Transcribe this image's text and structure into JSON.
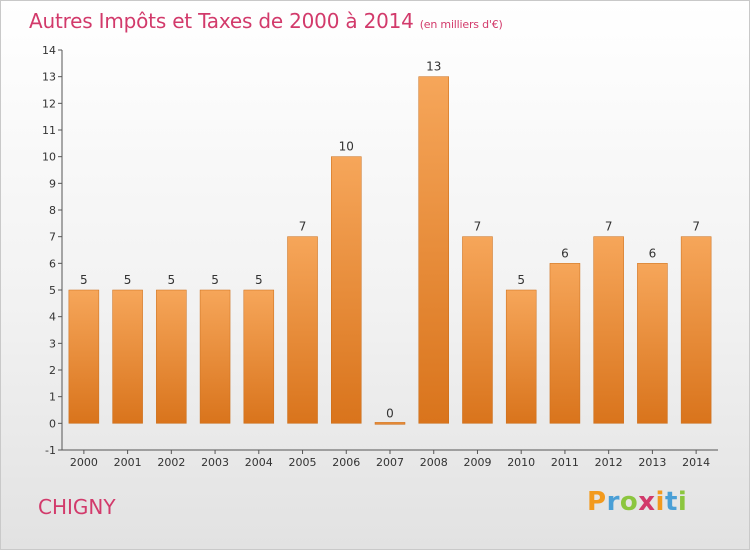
{
  "title": "Autres Impôts et Taxes de 2000 à 2014",
  "title_unit": "(en milliers d'€)",
  "location": "CHIGNY",
  "logo": {
    "text": "Proxiti",
    "letters": [
      {
        "ch": "P",
        "color": "#f29a1e"
      },
      {
        "ch": "r",
        "color": "#4a9fd6"
      },
      {
        "ch": "o",
        "color": "#8cc63f"
      },
      {
        "ch": "x",
        "color": "#d23a6b"
      },
      {
        "ch": "i",
        "color": "#f29a1e"
      },
      {
        "ch": "t",
        "color": "#4a9fd6"
      },
      {
        "ch": "i",
        "color": "#8cc63f"
      }
    ]
  },
  "chart_data": {
    "type": "bar",
    "categories": [
      "2000",
      "2001",
      "2002",
      "2003",
      "2004",
      "2005",
      "2006",
      "2007",
      "2008",
      "2009",
      "2010",
      "2011",
      "2012",
      "2013",
      "2014"
    ],
    "values": [
      5,
      5,
      5,
      5,
      5,
      7,
      10,
      0,
      13,
      7,
      5,
      6,
      7,
      6,
      7
    ],
    "value_labels": [
      "5",
      "5",
      "5",
      "5",
      "5",
      "7",
      "10",
      "0",
      "13",
      "7",
      "5",
      "6",
      "7",
      "6",
      "7"
    ],
    "ylim": [
      -1,
      14
    ],
    "yticks": [
      "-1",
      "0",
      "1",
      "2",
      "3",
      "4",
      "5",
      "6",
      "7",
      "8",
      "9",
      "10",
      "11",
      "12",
      "13",
      "14"
    ],
    "xlabel": "",
    "ylabel": "",
    "grid": false,
    "bar_color": "#f0923a",
    "title_color": "#d23a6b"
  }
}
